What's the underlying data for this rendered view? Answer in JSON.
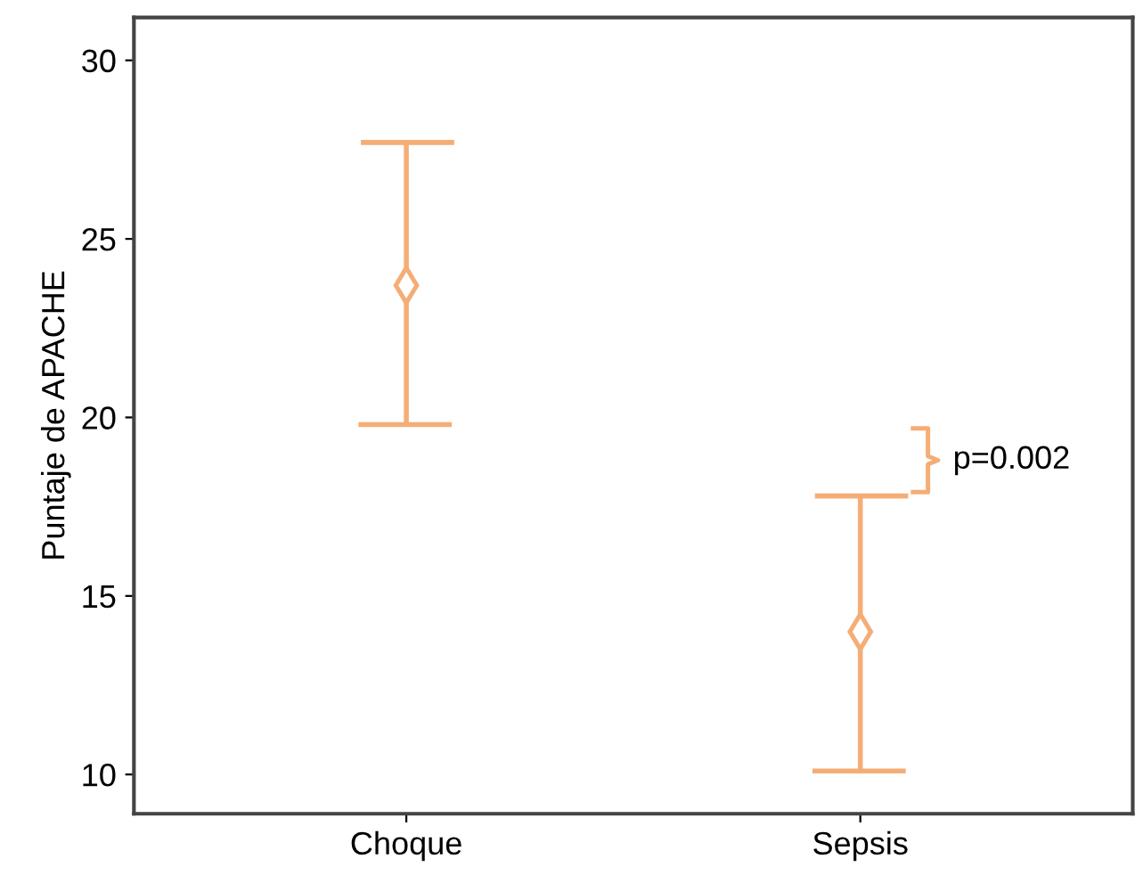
{
  "chart_data": {
    "type": "scatter",
    "ylabel": "Puntaje de APACHE",
    "categories": [
      "Choque",
      "Sepsis"
    ],
    "series": [
      {
        "color": "#f5ad76",
        "values": [
          23.7,
          14.0
        ],
        "errors": [
          [
            19.8,
            27.7
          ],
          [
            10.1,
            17.8
          ]
        ]
      }
    ],
    "ylim": [
      8.9,
      31.2
    ],
    "yticks": [
      10,
      15,
      20,
      25,
      30
    ],
    "grid": false,
    "marker": "diamond",
    "annotations": [
      "p=0.002"
    ]
  }
}
